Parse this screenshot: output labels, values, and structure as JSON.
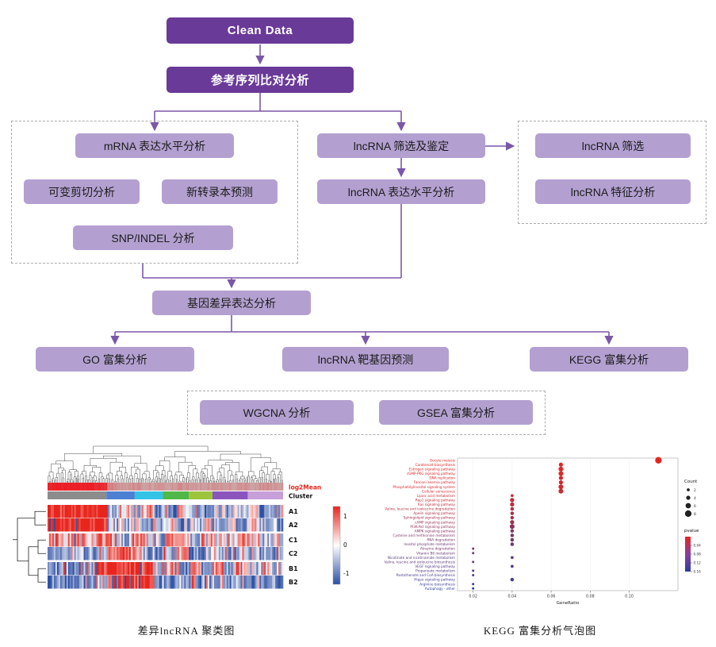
{
  "flowchart": {
    "colors": {
      "primary": "#6a3a98",
      "secondary": "#b3a0d0",
      "arrow": "#7b57a8"
    },
    "nodes": {
      "clean_data": "Clean Data",
      "ref_align": "参考序列比对分析",
      "mrna_expr": "mRNA 表达水平分析",
      "alt_splice": "可变剪切分析",
      "new_transcript": "新转录本预测",
      "snp_indel": "SNP/INDEL 分析",
      "lnc_screen_id": "lncRNA 筛选及鉴定",
      "lnc_expr": "lncRNA 表达水平分析",
      "lnc_screen": "lncRNA 筛选",
      "lnc_feature": "lncRNA 特征分析",
      "diff_expr": "基因差异表达分析",
      "go": "GO 富集分析",
      "target_pred": "lncRNA 靶基因预测",
      "kegg": "KEGG 富集分析",
      "wgcna": "WGCNA 分析",
      "gsea": "GSEA 富集分析"
    }
  },
  "captions": {
    "heatmap": "差异lncRNA 聚类图",
    "bubble": "KEGG 富集分析气泡图"
  },
  "chart_data": [
    {
      "type": "heatmap",
      "title": "差异lncRNA 聚类图",
      "row_labels": [
        "A1",
        "A2",
        "C1",
        "C2",
        "B1",
        "B2"
      ],
      "annotation_rows": [
        "log2Mean",
        "Cluster"
      ],
      "colorbar_ticks": [
        "1",
        "0",
        "-1"
      ],
      "max_color": "#e8251d",
      "mid_color": "#ffffff",
      "min_color": "#2c4fa3",
      "log2mean_pattern": [
        1,
        1,
        1,
        1,
        0.9,
        0.35,
        0.3,
        0.3,
        0.25,
        0.3,
        0.25,
        0.3,
        0.25,
        0.25,
        0.3,
        0.25,
        0.3,
        0.25,
        0.3,
        0.25
      ],
      "cluster_segments": [
        [
          0.25,
          "#8c8c8c"
        ],
        [
          0.12,
          "#4d7fd2"
        ],
        [
          0.12,
          "#33c3e6"
        ],
        [
          0.11,
          "#4fb848"
        ],
        [
          0.1,
          "#9dc43b"
        ],
        [
          0.15,
          "#8a56bd"
        ],
        [
          0.15,
          "#c79fd9"
        ]
      ],
      "row_patterns": [
        [
          1,
          1,
          1,
          1,
          1,
          -0.3,
          0.2,
          -0.6,
          0.4,
          -0.5,
          -0.7,
          0.3,
          -0.4,
          -0.6,
          0.2,
          -0.5,
          -0.3,
          0.3,
          -0.6,
          -0.4
        ],
        [
          1,
          1,
          1,
          1,
          0.9,
          -0.4,
          -0.2,
          0.3,
          -0.5,
          -0.3,
          0.2,
          -0.6,
          -0.3,
          0.2,
          -0.4,
          -0.2,
          -0.5,
          0.2,
          -0.3,
          -0.5
        ],
        [
          0.5,
          0.4,
          0.6,
          0.3,
          0.5,
          0.4,
          -0.3,
          0.5,
          0.2,
          -0.4,
          0.3,
          0.4,
          -0.2,
          0.5,
          0.3,
          -0.3,
          0.4,
          0.2,
          -0.2,
          0.3
        ],
        [
          -0.5,
          -0.6,
          -0.4,
          -0.5,
          -0.3,
          0.4,
          0.5,
          0.3,
          -0.4,
          -0.6,
          -0.5,
          0.3,
          -0.6,
          -0.4,
          -0.5,
          -0.6,
          -0.3,
          -0.5,
          -0.4,
          -0.6
        ],
        [
          -0.6,
          -0.5,
          -0.7,
          -0.4,
          0.8,
          1,
          0.9,
          1,
          0.8,
          -0.3,
          0.4,
          -0.5,
          0.3,
          -0.4,
          0.5,
          -0.3,
          0.4,
          -0.5,
          0.3,
          -0.4
        ],
        [
          -0.6,
          -0.7,
          -0.5,
          -0.6,
          -0.4,
          0.9,
          1,
          0.8,
          0.9,
          -0.5,
          -0.6,
          -0.4,
          -0.7,
          -0.5,
          -0.3,
          -0.6,
          -0.4,
          -0.5,
          -0.7,
          -0.5
        ]
      ]
    },
    {
      "type": "scatter",
      "title": "KEGG 富集分析气泡图",
      "xlabel": "GeneRatio",
      "xlim": [
        0.012,
        0.125
      ],
      "xticks": [
        0.02,
        0.04,
        0.06,
        0.08,
        0.1
      ],
      "legend_count": {
        "label": "Count",
        "values": [
          2,
          4,
          6,
          8
        ]
      },
      "legend_pvalue": {
        "label": "pvalue",
        "ticks": [
          0.04,
          0.08,
          0.12,
          0.16
        ],
        "low_color": "#e8251d",
        "high_color": "#2b3fa0"
      },
      "pathways": [
        {
          "name": "Oocyte meiosis",
          "generatio": 0.115,
          "count": 8,
          "pvalue": 0.003
        },
        {
          "name": "Carotenoid biosynthesis",
          "generatio": 0.065,
          "count": 4,
          "pvalue": 0.006
        },
        {
          "name": "Estrogen signaling pathway",
          "generatio": 0.065,
          "count": 5,
          "pvalue": 0.008
        },
        {
          "name": "cGMP-PKG signaling pathway",
          "generatio": 0.065,
          "count": 5,
          "pvalue": 0.01
        },
        {
          "name": "DNA replication",
          "generatio": 0.065,
          "count": 4,
          "pvalue": 0.012
        },
        {
          "name": "Fanconi anemia pathway",
          "generatio": 0.065,
          "count": 4,
          "pvalue": 0.015
        },
        {
          "name": "Phosphatidylinositol signaling system",
          "generatio": 0.065,
          "count": 5,
          "pvalue": 0.018
        },
        {
          "name": "Cellular senescence",
          "generatio": 0.065,
          "count": 5,
          "pvalue": 0.022
        },
        {
          "name": "Lipoic acid metabolism",
          "generatio": 0.04,
          "count": 2,
          "pvalue": 0.028
        },
        {
          "name": "Rap1 signaling pathway",
          "generatio": 0.04,
          "count": 4,
          "pvalue": 0.033
        },
        {
          "name": "Ras signaling pathway",
          "generatio": 0.04,
          "count": 4,
          "pvalue": 0.038
        },
        {
          "name": "Valine, leucine and isoleucine degradation",
          "generatio": 0.04,
          "count": 3,
          "pvalue": 0.044
        },
        {
          "name": "Apelin signaling pathway",
          "generatio": 0.04,
          "count": 3,
          "pvalue": 0.05
        },
        {
          "name": "Sphingolipid signaling pathway",
          "generatio": 0.04,
          "count": 3,
          "pvalue": 0.058
        },
        {
          "name": "cAMP signaling pathway",
          "generatio": 0.04,
          "count": 4,
          "pvalue": 0.066
        },
        {
          "name": "PI3K-Akt signaling pathway",
          "generatio": 0.04,
          "count": 5,
          "pvalue": 0.074
        },
        {
          "name": "AMPK signaling pathway",
          "generatio": 0.04,
          "count": 3,
          "pvalue": 0.082
        },
        {
          "name": "Cysteine and methionine metabolism",
          "generatio": 0.04,
          "count": 3,
          "pvalue": 0.09
        },
        {
          "name": "RNA degradation",
          "generatio": 0.04,
          "count": 3,
          "pvalue": 0.098
        },
        {
          "name": "Inositol phosphate metabolism",
          "generatio": 0.04,
          "count": 3,
          "pvalue": 0.106
        },
        {
          "name": "Atrazine degradation",
          "generatio": 0.02,
          "count": 1,
          "pvalue": 0.095
        },
        {
          "name": "Vitamin B6 metabolism",
          "generatio": 0.02,
          "count": 1,
          "pvalue": 0.105
        },
        {
          "name": "Nicotinate and nicotinamide metabolism",
          "generatio": 0.04,
          "count": 2,
          "pvalue": 0.12
        },
        {
          "name": "Valine, leucine and isoleucine biosynthesis",
          "generatio": 0.02,
          "count": 1,
          "pvalue": 0.115
        },
        {
          "name": "VEGF signaling pathway",
          "generatio": 0.04,
          "count": 2,
          "pvalue": 0.128
        },
        {
          "name": "Propanoate metabolism",
          "generatio": 0.02,
          "count": 1,
          "pvalue": 0.125
        },
        {
          "name": "Pantothenate and CoA biosynthesis",
          "generatio": 0.02,
          "count": 1,
          "pvalue": 0.135
        },
        {
          "name": "Hippo signaling pathway",
          "generatio": 0.04,
          "count": 3,
          "pvalue": 0.142
        },
        {
          "name": "Arginine biosynthesis",
          "generatio": 0.02,
          "count": 1,
          "pvalue": 0.15
        },
        {
          "name": "Autophagy - other",
          "generatio": 0.02,
          "count": 1,
          "pvalue": 0.158
        }
      ]
    }
  ]
}
